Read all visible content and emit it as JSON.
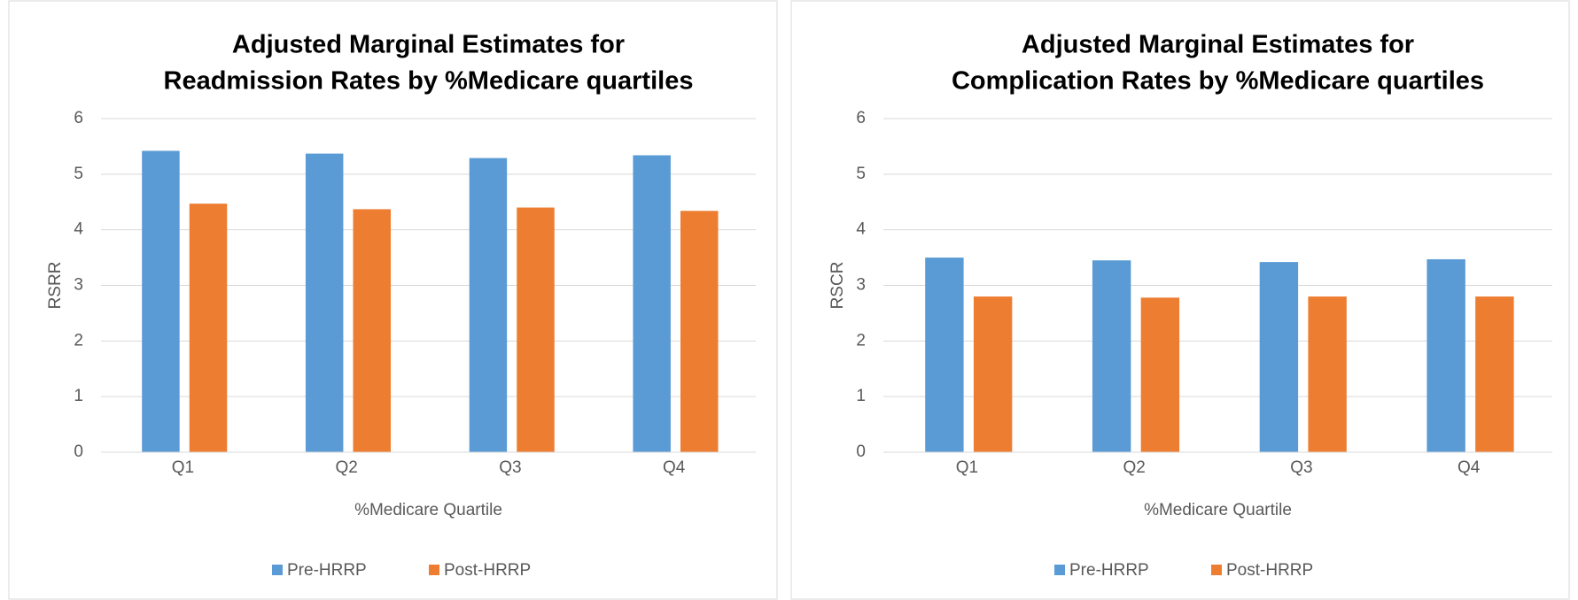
{
  "chart_data": [
    {
      "type": "bar",
      "title": [
        "Adjusted Marginal Estimates for",
        "Readmission Rates by %Medicare quartiles"
      ],
      "x_label": "%Medicare Quartile",
      "y_label": "RSRR",
      "categories": [
        "Q1",
        "Q2",
        "Q3",
        "Q4"
      ],
      "series": [
        {
          "name": "Pre-HRRP",
          "color": "#5b9bd5",
          "values": [
            5.42,
            5.37,
            5.29,
            5.34
          ]
        },
        {
          "name": "Post-HRRP",
          "color": "#ed7d31",
          "values": [
            4.47,
            4.37,
            4.4,
            4.34
          ]
        }
      ],
      "ylim": [
        0,
        6
      ],
      "yticks": [
        0,
        1,
        2,
        3,
        4,
        5,
        6
      ],
      "grid": true,
      "legend": "bottom"
    },
    {
      "type": "bar",
      "title": [
        "Adjusted Marginal Estimates for",
        "Complication Rates by %Medicare quartiles"
      ],
      "x_label": "%Medicare Quartile",
      "y_label": "RSCR",
      "categories": [
        "Q1",
        "Q2",
        "Q3",
        "Q4"
      ],
      "series": [
        {
          "name": "Pre-HRRP",
          "color": "#5b9bd5",
          "values": [
            3.5,
            3.45,
            3.42,
            3.47
          ]
        },
        {
          "name": "Post-HRRP",
          "color": "#ed7d31",
          "values": [
            2.8,
            2.78,
            2.8,
            2.8
          ]
        }
      ],
      "ylim": [
        0,
        6
      ],
      "yticks": [
        0,
        1,
        2,
        3,
        4,
        5,
        6
      ],
      "grid": true,
      "legend": "bottom"
    }
  ]
}
